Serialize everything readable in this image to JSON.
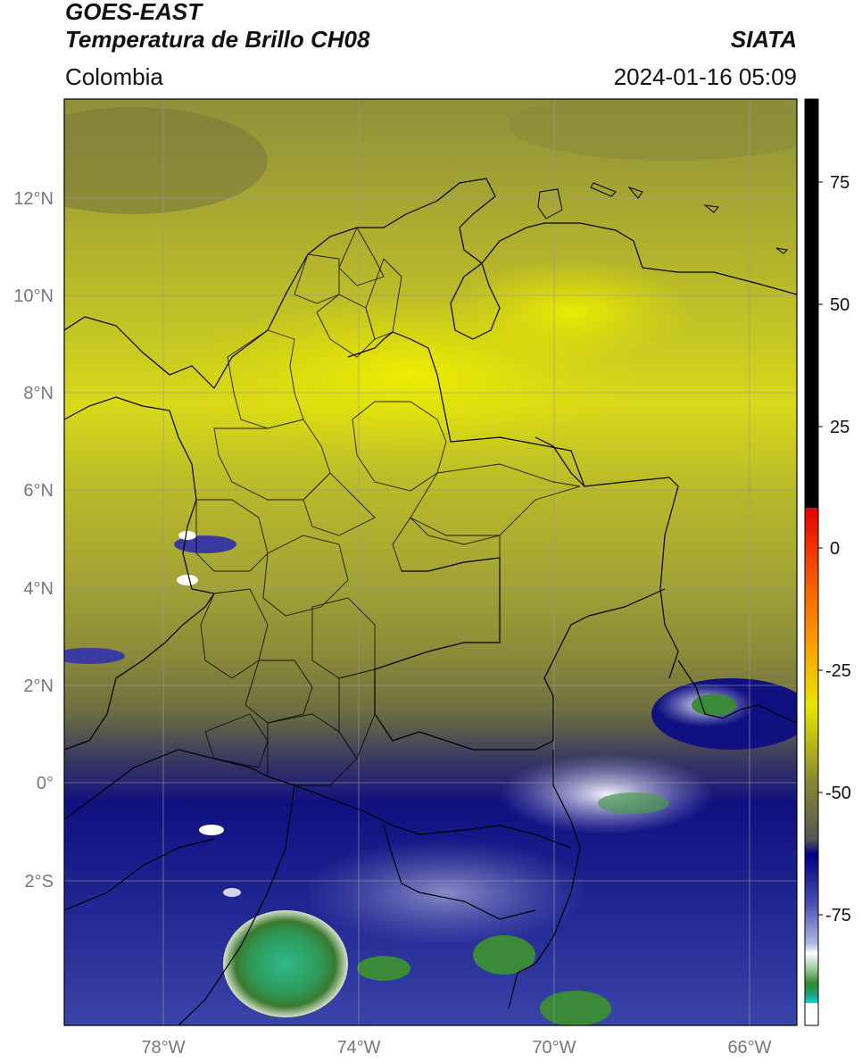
{
  "header": {
    "title_line1": "GOES-EAST",
    "title_line2": "Temperatura de Brillo CH08",
    "agency": "SIATA",
    "region": "Colombia",
    "datetime": "2024-01-16 05:09"
  },
  "map": {
    "lon_labels": [
      "78°W",
      "74°W",
      "70°W",
      "66°W"
    ],
    "lat_labels": [
      "12°N",
      "10°N",
      "8°N",
      "6°N",
      "4°N",
      "2°N",
      "0°",
      "2°S"
    ]
  },
  "colorbar": {
    "tick_labels": [
      "75",
      "50",
      "25",
      "0",
      "-25",
      "-50",
      "-75"
    ],
    "colors": {
      "warm": "#000000",
      "red": "#e60000",
      "orange": "#ff8c00",
      "yellow": "#e6e600",
      "olive": "#6e6e28",
      "blue": "#000080",
      "white": "#ffffff",
      "green": "#2e8b2e",
      "cyan": "#00e0e0"
    }
  }
}
